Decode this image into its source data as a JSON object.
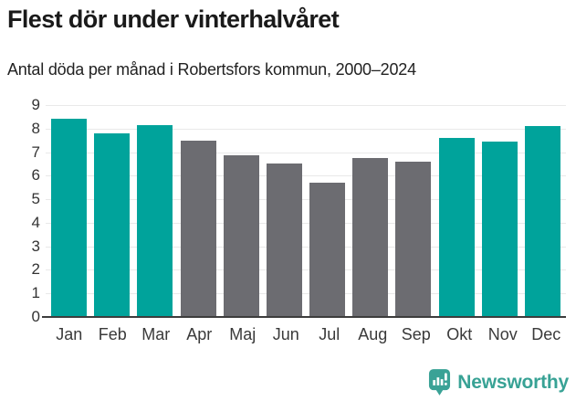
{
  "header": {
    "title": "Flest dör under vinterhalvåret",
    "subtitle": "Antal döda per månad i Robertsfors kommun, 2000–2024"
  },
  "chart_data": {
    "type": "bar",
    "title": "Flest dör under vinterhalvåret",
    "subtitle": "Antal döda per månad i Robertsfors kommun, 2000–2024",
    "categories": [
      "Jan",
      "Feb",
      "Mar",
      "Apr",
      "Maj",
      "Jun",
      "Jul",
      "Aug",
      "Sep",
      "Okt",
      "Nov",
      "Dec"
    ],
    "values": [
      8.4,
      7.8,
      8.15,
      7.5,
      6.85,
      6.5,
      5.7,
      6.75,
      6.6,
      7.6,
      7.45,
      8.1
    ],
    "bar_colors": [
      "teal",
      "teal",
      "teal",
      "gray",
      "gray",
      "gray",
      "gray",
      "gray",
      "gray",
      "teal",
      "teal",
      "teal"
    ],
    "xlabel": "",
    "ylabel": "",
    "ylim": [
      0,
      9
    ],
    "y_ticks": [
      0,
      1,
      2,
      3,
      4,
      5,
      6,
      7,
      8,
      9
    ],
    "grid": "horizontal",
    "legend": "none"
  },
  "colors": {
    "teal": "#00a39b",
    "gray": "#6c6c71",
    "axis": "#3d3d3d",
    "gridline": "#e9e9e9",
    "title_text": "#1a1a1a",
    "tick_text": "#3a3a3a",
    "logo": "#38a295"
  },
  "footer": {
    "logo_icon": "newsworthy-speech-bubble-barchart-icon",
    "logo_text": "Newsworthy"
  }
}
